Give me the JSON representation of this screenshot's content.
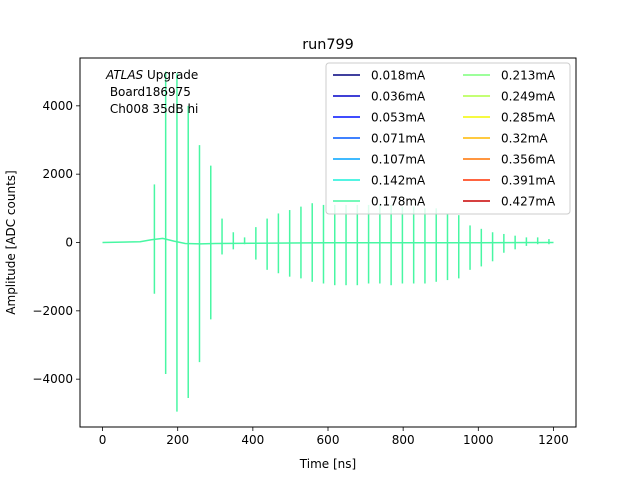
{
  "chart_data": {
    "type": "line",
    "title": "run799",
    "xlabel": "Time [ns]",
    "ylabel": "Amplitude [ADC counts]",
    "xlim": [
      -60,
      1260
    ],
    "ylim": [
      -5400,
      5400
    ],
    "xticks": [
      0,
      200,
      400,
      600,
      800,
      1000,
      1200
    ],
    "xtick_labels": [
      "0",
      "200",
      "400",
      "600",
      "800",
      "1000",
      "1200"
    ],
    "yticks": [
      -4000,
      -2000,
      0,
      2000,
      4000
    ],
    "ytick_labels": [
      "−4000",
      "−2000",
      "0",
      "2000",
      "4000"
    ],
    "grid": false,
    "legend_position": "top-right",
    "legend_columns": 2,
    "annotation": {
      "italic": "ATLAS",
      "line1_rest": " Upgrade",
      "line2": " Board186975",
      "line3": " Ch008 35dB hi"
    },
    "series": [
      {
        "name": "0.018mA",
        "color": "#00007f",
        "visible": false
      },
      {
        "name": "0.036mA",
        "color": "#0000c8",
        "visible": false
      },
      {
        "name": "0.053mA",
        "color": "#0010ff",
        "visible": false
      },
      {
        "name": "0.071mA",
        "color": "#0058ff",
        "visible": false
      },
      {
        "name": "0.107mA",
        "color": "#00a4ff",
        "visible": false
      },
      {
        "name": "0.142mA",
        "color": "#1cf0da",
        "visible": false
      },
      {
        "name": "0.178mA",
        "color": "#48f7a3",
        "visible": true
      },
      {
        "name": "0.213mA",
        "color": "#7dff7a",
        "visible": false
      },
      {
        "name": "0.249mA",
        "color": "#b0ff46",
        "visible": false
      },
      {
        "name": "0.285mA",
        "color": "#f4f802",
        "visible": false
      },
      {
        "name": "0.32mA",
        "color": "#ffb900",
        "visible": false
      },
      {
        "name": "0.356mA",
        "color": "#ff7300",
        "visible": false
      },
      {
        "name": "0.391mA",
        "color": "#ff3000",
        "visible": false
      },
      {
        "name": "0.427mA",
        "color": "#c80000",
        "visible": false
      }
    ],
    "baseline": {
      "x": [
        0,
        100,
        130,
        160,
        190,
        220,
        260,
        300,
        400,
        600,
        800,
        1000,
        1200
      ],
      "y": [
        0,
        20,
        80,
        120,
        40,
        -30,
        -40,
        -30,
        -20,
        -10,
        -10,
        -5,
        0
      ]
    },
    "spikes": {
      "x": [
        138,
        168,
        198,
        228,
        258,
        288,
        318,
        348,
        378,
        408,
        438,
        468,
        498,
        528,
        558,
        588,
        618,
        648,
        678,
        708,
        738,
        768,
        798,
        828,
        858,
        888,
        918,
        948,
        978,
        1008,
        1038,
        1068,
        1098,
        1128,
        1158,
        1188
      ],
      "max": [
        1700,
        5000,
        4950,
        4000,
        2850,
        2250,
        700,
        300,
        150,
        450,
        700,
        850,
        950,
        1050,
        1150,
        1100,
        1100,
        1100,
        1100,
        1100,
        1100,
        1100,
        1050,
        1050,
        1000,
        1000,
        850,
        800,
        500,
        400,
        300,
        250,
        200,
        150,
        150,
        100
      ],
      "min": [
        -1500,
        -3850,
        -4950,
        -4550,
        -3500,
        -2250,
        -350,
        -200,
        -50,
        -500,
        -800,
        -900,
        -1000,
        -1050,
        -1150,
        -1200,
        -1250,
        -1250,
        -1250,
        -1200,
        -1200,
        -1250,
        -1200,
        -1200,
        -1200,
        -1150,
        -1100,
        -1050,
        -800,
        -700,
        -550,
        -300,
        -200,
        -100,
        -50,
        -50
      ]
    }
  }
}
